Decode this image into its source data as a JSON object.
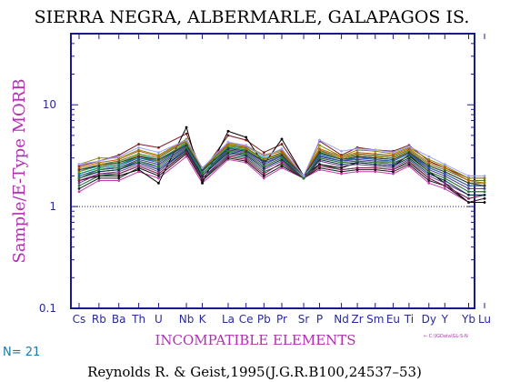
{
  "chart_data": {
    "type": "line",
    "title": "SIERRA NEGRA, ALBERMARLE, GALAPAGOS IS.",
    "ylabel": "Sample/E-Type MORB",
    "xlabel": "INCOMPATIBLE ELEMENTS",
    "yscale": "log",
    "ylim": [
      0.1,
      50
    ],
    "ytick_labels": [
      "0.1",
      "1",
      "10"
    ],
    "reference_line": 1,
    "categories": [
      "Cs",
      "Rb",
      "Ba",
      "Th",
      "U",
      "Nb",
      "K",
      "La",
      "Ce",
      "Pb",
      "Pr",
      "Sr",
      "P",
      "Nd",
      "Zr",
      "Sm",
      "Eu",
      "Ti",
      "Dy",
      "Y",
      "Yb",
      "Lu"
    ],
    "category_positions": [
      0,
      1,
      2,
      3,
      4,
      5.4,
      6.2,
      7.5,
      8.4,
      9.3,
      10.2,
      11.3,
      12.1,
      13.2,
      14.0,
      14.9,
      15.8,
      16.6,
      17.6,
      18.4,
      19.6,
      20.4
    ],
    "colors": [
      "#7a1a1a",
      "#1e6b3a",
      "#0a7a7a",
      "#3a3aa8",
      "#c63ab0",
      "#8a8a00",
      "#10b0b0",
      "#000000",
      "#4b2d8a",
      "#4a7d2a",
      "#6a3a8a",
      "#c05a10",
      "#1a1a1a",
      "#2d5aa8",
      "#0b8a5a",
      "#8a1a5a",
      "#00304a",
      "#a07a00",
      "#3a3a3a",
      "#2a7a2a",
      "#a0a0ff"
    ],
    "series": [
      {
        "values": [
          2.5,
          2.8,
          3.2,
          4.1,
          3.8,
          5.2,
          2.2,
          5.0,
          4.5,
          3.4,
          4.1,
          2.0,
          4.4,
          3.2,
          3.8,
          3.6,
          3.5,
          4.0,
          2.8,
          2.4,
          1.9,
          1.9
        ]
      },
      {
        "values": [
          1.6,
          2.0,
          2.1,
          2.5,
          2.1,
          3.5,
          1.8,
          3.2,
          3.0,
          2.2,
          2.6,
          1.9,
          2.6,
          2.3,
          2.4,
          2.4,
          2.3,
          2.8,
          1.9,
          1.6,
          1.2,
          1.3
        ]
      },
      {
        "values": [
          2.1,
          2.4,
          2.6,
          3.0,
          2.8,
          4.0,
          2.2,
          3.8,
          3.6,
          2.8,
          3.2,
          2.0,
          3.3,
          2.9,
          3.0,
          3.0,
          2.9,
          3.4,
          2.4,
          2.1,
          1.6,
          1.6
        ]
      },
      {
        "values": [
          1.9,
          2.2,
          2.3,
          2.8,
          2.4,
          3.7,
          2.0,
          3.5,
          3.3,
          2.5,
          3.0,
          1.9,
          3.0,
          2.7,
          2.8,
          2.7,
          2.6,
          3.2,
          2.2,
          1.9,
          1.4,
          1.4
        ]
      },
      {
        "values": [
          1.4,
          1.8,
          1.8,
          2.2,
          1.9,
          3.1,
          1.7,
          2.9,
          2.7,
          1.9,
          2.4,
          1.9,
          2.3,
          2.1,
          2.2,
          2.2,
          2.1,
          2.5,
          1.7,
          1.5,
          1.1,
          1.2
        ]
      },
      {
        "values": [
          2.6,
          3.0,
          3.0,
          3.6,
          3.2,
          4.6,
          2.3,
          4.2,
          4.0,
          3.2,
          3.6,
          2.0,
          4.0,
          3.1,
          3.6,
          3.5,
          3.3,
          3.8,
          2.9,
          2.5,
          1.9,
          1.9
        ]
      },
      {
        "values": [
          2.2,
          2.5,
          2.7,
          3.2,
          2.9,
          4.2,
          2.3,
          3.9,
          3.7,
          3.0,
          3.3,
          2.0,
          3.5,
          3.0,
          3.2,
          3.1,
          3.0,
          3.5,
          2.5,
          2.2,
          1.7,
          1.7
        ]
      },
      {
        "values": [
          1.8,
          2.0,
          2.0,
          2.3,
          1.7,
          6.0,
          1.7,
          5.5,
          4.8,
          2.6,
          4.6,
          2.0,
          2.6,
          2.4,
          2.7,
          2.6,
          2.5,
          3.2,
          2.2,
          1.7,
          1.1,
          1.1
        ]
      },
      {
        "values": [
          2.0,
          2.3,
          2.4,
          2.9,
          2.6,
          3.9,
          2.1,
          3.6,
          3.4,
          2.6,
          3.1,
          1.9,
          3.1,
          2.8,
          2.9,
          2.8,
          2.8,
          3.3,
          2.3,
          2.0,
          1.5,
          1.5
        ]
      },
      {
        "values": [
          2.3,
          2.6,
          2.8,
          3.3,
          3.0,
          4.4,
          2.4,
          4.0,
          3.8,
          2.9,
          3.4,
          2.0,
          3.6,
          3.0,
          3.3,
          3.2,
          3.1,
          3.6,
          2.6,
          2.3,
          1.8,
          1.8
        ]
      },
      {
        "values": [
          1.7,
          2.1,
          2.2,
          2.6,
          2.2,
          3.6,
          1.9,
          3.3,
          3.1,
          2.3,
          2.8,
          1.9,
          2.8,
          2.5,
          2.6,
          2.5,
          2.4,
          2.9,
          2.0,
          1.7,
          1.3,
          1.3
        ]
      },
      {
        "values": [
          2.4,
          2.7,
          2.9,
          3.5,
          3.1,
          4.5,
          2.4,
          4.1,
          3.9,
          3.1,
          3.5,
          2.0,
          3.7,
          3.1,
          3.4,
          3.3,
          3.2,
          3.7,
          2.7,
          2.4,
          1.8,
          1.7
        ]
      },
      {
        "values": [
          1.5,
          1.9,
          1.9,
          2.4,
          2.0,
          3.3,
          1.8,
          3.0,
          2.8,
          2.0,
          2.5,
          1.9,
          2.4,
          2.2,
          2.3,
          2.3,
          2.2,
          2.6,
          1.8,
          1.6,
          1.1,
          1.2
        ]
      },
      {
        "values": [
          2.0,
          2.3,
          2.5,
          3.0,
          2.7,
          4.0,
          2.1,
          3.7,
          3.5,
          2.7,
          3.1,
          2.0,
          3.2,
          2.8,
          3.0,
          2.9,
          2.8,
          3.3,
          2.4,
          2.1,
          1.6,
          1.6
        ]
      },
      {
        "values": [
          2.1,
          2.4,
          2.6,
          3.1,
          2.8,
          4.1,
          2.2,
          3.8,
          3.6,
          2.8,
          3.2,
          2.0,
          3.4,
          2.9,
          3.1,
          3.0,
          2.9,
          3.4,
          2.5,
          2.2,
          1.7,
          1.6
        ]
      },
      {
        "values": [
          1.8,
          2.1,
          2.1,
          2.5,
          2.1,
          3.4,
          1.9,
          3.1,
          2.9,
          2.1,
          2.7,
          1.9,
          2.5,
          2.3,
          2.4,
          2.4,
          2.3,
          2.7,
          1.9,
          1.6,
          1.2,
          1.3
        ]
      },
      {
        "values": [
          1.9,
          2.2,
          2.3,
          2.7,
          2.3,
          3.6,
          2.0,
          3.4,
          3.2,
          2.4,
          2.9,
          1.9,
          2.9,
          2.6,
          2.7,
          2.6,
          2.5,
          3.0,
          2.1,
          1.8,
          1.3,
          1.3
        ]
      },
      {
        "values": [
          2.2,
          2.6,
          2.7,
          3.2,
          2.8,
          4.3,
          2.3,
          4.0,
          3.7,
          2.9,
          3.3,
          2.0,
          3.5,
          3.0,
          3.2,
          3.1,
          3.0,
          3.5,
          2.5,
          2.2,
          1.7,
          1.7
        ]
      },
      {
        "values": [
          2.3,
          2.5,
          2.7,
          3.1,
          2.9,
          4.0,
          2.3,
          3.7,
          3.5,
          2.8,
          3.2,
          2.0,
          3.4,
          2.9,
          3.1,
          3.0,
          2.9,
          3.4,
          2.5,
          2.2,
          1.7,
          1.6
        ]
      },
      {
        "values": [
          1.9,
          2.3,
          2.4,
          2.8,
          2.5,
          3.8,
          2.1,
          3.5,
          3.3,
          2.5,
          3.0,
          1.9,
          3.0,
          2.7,
          2.8,
          2.7,
          2.7,
          3.1,
          2.2,
          1.9,
          1.4,
          1.4
        ]
      },
      {
        "values": [
          2.6,
          2.8,
          3.1,
          3.8,
          3.4,
          4.5,
          2.4,
          4.3,
          4.0,
          3.1,
          3.7,
          2.0,
          4.5,
          3.5,
          3.7,
          3.6,
          3.4,
          3.9,
          3.1,
          2.6,
          2.0,
          2.0
        ]
      }
    ]
  },
  "footer": {
    "n_label": "N= 21",
    "citation": "Reynolds R. & Geist,1995(J.G.R.B100,24537–53)",
    "file_note": "← C:\\IGData\\GL-S-N"
  }
}
